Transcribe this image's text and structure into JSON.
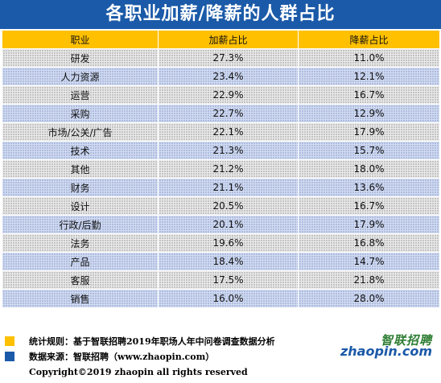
{
  "title": "各职业加薪/降薪的人群占比",
  "chart_data": {
    "type": "table",
    "title": "各职业加薪/降薪的人群占比",
    "columns": [
      "职业",
      "加薪占比",
      "降薪占比"
    ],
    "rows": [
      [
        "研发",
        "27.3%",
        "11.0%"
      ],
      [
        "人力资源",
        "23.4%",
        "12.1%"
      ],
      [
        "运营",
        "22.9%",
        "16.7%"
      ],
      [
        "采购",
        "22.7%",
        "12.9%"
      ],
      [
        "市场/公关/广告",
        "22.1%",
        "17.9%"
      ],
      [
        "技术",
        "21.3%",
        "15.7%"
      ],
      [
        "其他",
        "21.2%",
        "18.0%"
      ],
      [
        "财务",
        "21.1%",
        "13.6%"
      ],
      [
        "设计",
        "20.5%",
        "16.7%"
      ],
      [
        "行政/后勤",
        "20.1%",
        "17.9%"
      ],
      [
        "法务",
        "19.6%",
        "16.8%"
      ],
      [
        "产品",
        "18.4%",
        "14.7%"
      ],
      [
        "客服",
        "17.5%",
        "21.8%"
      ],
      [
        "销售",
        "16.0%",
        "28.0%"
      ]
    ]
  },
  "footer": {
    "note1": "统计规则：基于智联招聘2019年职场人年中问卷调查数据分析",
    "note2": "数据来源：智联招聘（www.zhaopin.com）",
    "copyright": "Copyright©2019 zhaopin all rights reserved",
    "logo_cn": "智联招聘",
    "logo_en": "zhaopin.com"
  },
  "colors": {
    "title_bg": "#1b5aa8",
    "header_bg": "#ffc000",
    "row_odd": "#ebebeb",
    "row_even": "#d2dcf1",
    "bullet_yellow": "#ffc000",
    "bullet_blue": "#1b5aa8"
  }
}
